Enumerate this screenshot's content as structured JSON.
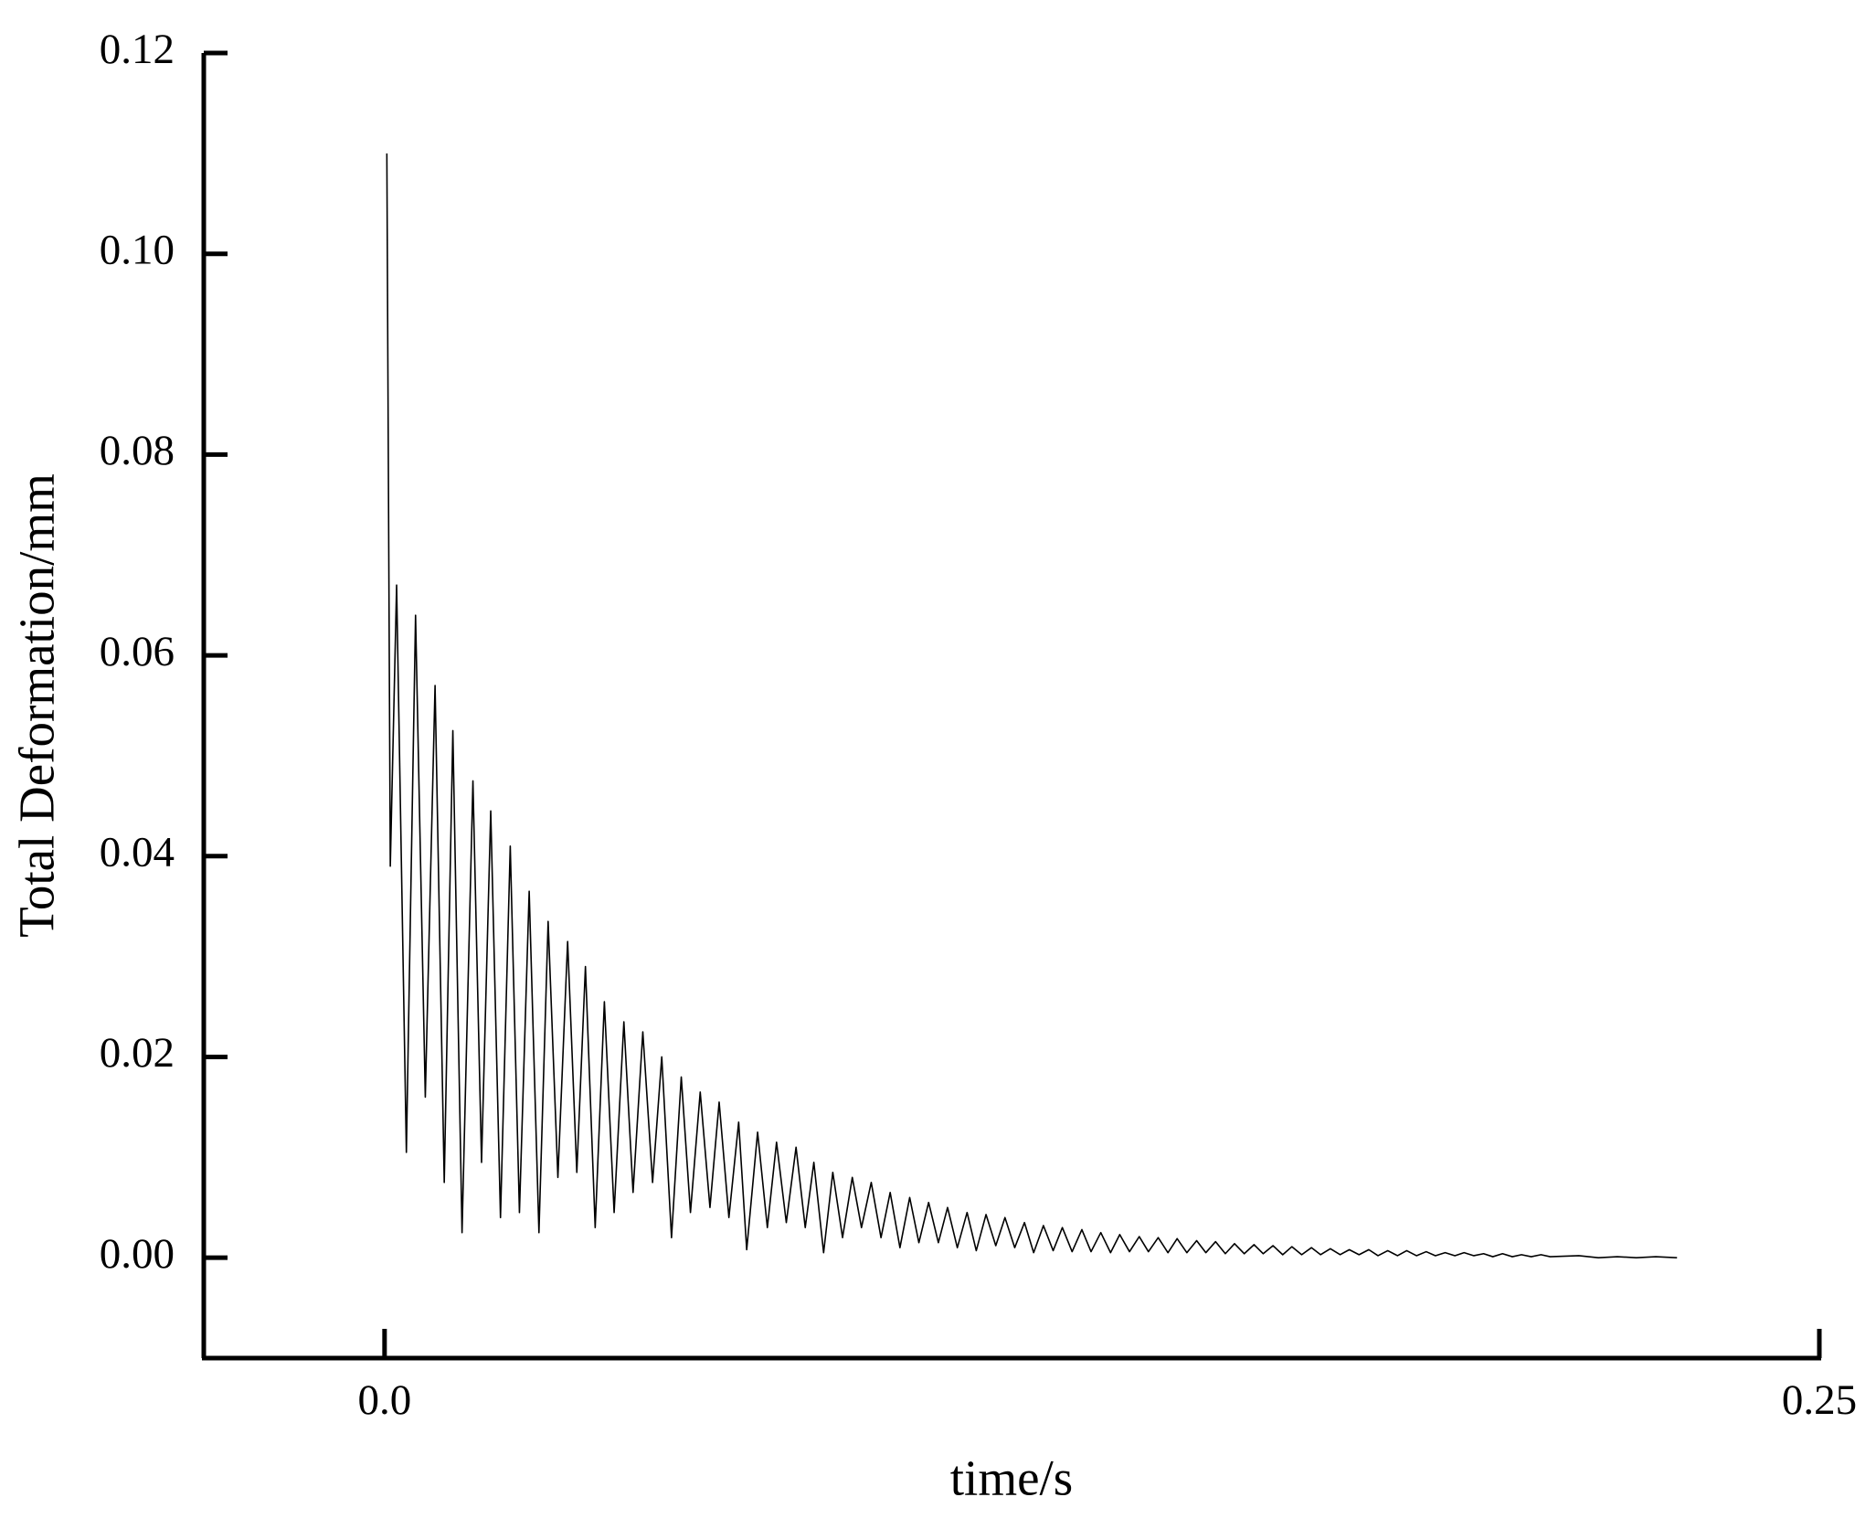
{
  "chart_data": {
    "type": "line",
    "x_label": "time/s",
    "y_label": "Total Deformation/mm",
    "xlim": [
      -0.0315,
      0.25
    ],
    "ylim": [
      -0.01,
      0.12
    ],
    "xticks": [
      {
        "value": 0,
        "label": "0.0"
      },
      0.25
    ],
    "yticks": [
      {
        "value": 0,
        "label": "0.00"
      },
      0.02,
      0.04,
      0.06,
      0.08,
      {
        "value": 0.1,
        "label": "0.10"
      },
      0.12
    ],
    "color": "#000000",
    "x": [
      0.0004,
      0.001,
      0.0021,
      0.0038,
      0.0054,
      0.0071,
      0.0088,
      0.0104,
      0.0119,
      0.0135,
      0.0154,
      0.0169,
      0.0185,
      0.0202,
      0.0219,
      0.0235,
      0.0252,
      0.0269,
      0.0285,
      0.0302,
      0.0319,
      0.0335,
      0.035,
      0.0367,
      0.0383,
      0.04,
      0.0417,
      0.0433,
      0.045,
      0.0467,
      0.0483,
      0.05,
      0.0517,
      0.0533,
      0.055,
      0.0567,
      0.0583,
      0.06,
      0.0617,
      0.0631,
      0.065,
      0.0667,
      0.0683,
      0.07,
      0.0717,
      0.0733,
      0.0748,
      0.0765,
      0.0781,
      0.0798,
      0.0815,
      0.0831,
      0.0848,
      0.0865,
      0.0881,
      0.0898,
      0.0915,
      0.0931,
      0.0948,
      0.0965,
      0.0981,
      0.0998,
      0.1015,
      0.1031,
      0.1048,
      0.1065,
      0.1081,
      0.1098,
      0.1115,
      0.1131,
      0.1148,
      0.1165,
      0.1181,
      0.1198,
      0.1215,
      0.1231,
      0.1248,
      0.1265,
      0.1281,
      0.1298,
      0.1315,
      0.1331,
      0.1348,
      0.1365,
      0.1381,
      0.1398,
      0.1415,
      0.1431,
      0.1448,
      0.1465,
      0.1481,
      0.1498,
      0.1515,
      0.1531,
      0.1548,
      0.1565,
      0.1581,
      0.1598,
      0.1615,
      0.1631,
      0.1648,
      0.1665,
      0.1681,
      0.1698,
      0.1715,
      0.1731,
      0.1748,
      0.1765,
      0.1781,
      0.1798,
      0.1815,
      0.1831,
      0.1848,
      0.1865,
      0.1881,
      0.1898,
      0.1915,
      0.1931,
      0.1948,
      0.1965,
      0.1981,
      0.1998,
      0.2015,
      0.2031,
      0.2081,
      0.2115,
      0.2148,
      0.2181,
      0.2215,
      0.2252
    ],
    "values": [
      0.11,
      0.039,
      0.067,
      0.0105,
      0.064,
      0.016,
      0.057,
      0.0075,
      0.0525,
      0.0025,
      0.0475,
      0.0095,
      0.0445,
      0.004,
      0.041,
      0.0045,
      0.0365,
      0.0025,
      0.0335,
      0.008,
      0.0315,
      0.0085,
      0.029,
      0.003,
      0.0255,
      0.0045,
      0.0235,
      0.0065,
      0.0225,
      0.0075,
      0.02,
      0.002,
      0.018,
      0.0045,
      0.0165,
      0.005,
      0.0155,
      0.004,
      0.0135,
      0.0008,
      0.0125,
      0.003,
      0.0115,
      0.0035,
      0.011,
      0.003,
      0.0095,
      0.0005,
      0.0085,
      0.002,
      0.008,
      0.003,
      0.0075,
      0.002,
      0.0065,
      0.001,
      0.006,
      0.0015,
      0.0055,
      0.0015,
      0.005,
      0.001,
      0.0045,
      0.0007,
      0.0043,
      0.0012,
      0.004,
      0.001,
      0.0035,
      0.0005,
      0.0032,
      0.0007,
      0.003,
      0.0006,
      0.0028,
      0.0006,
      0.0025,
      0.0005,
      0.0023,
      0.0006,
      0.0021,
      0.0006,
      0.002,
      0.0005,
      0.0019,
      0.0005,
      0.0017,
      0.0005,
      0.0016,
      0.0004,
      0.0014,
      0.0004,
      0.0013,
      0.0004,
      0.0012,
      0.0003,
      0.0011,
      0.0003,
      0.001,
      0.0003,
      0.0009,
      0.0003,
      0.0008,
      0.0003,
      0.0008,
      0.0002,
      0.0007,
      0.0002,
      0.0007,
      0.0002,
      0.0006,
      0.0002,
      0.0005,
      0.0002,
      0.0005,
      0.0002,
      0.0004,
      0.0001,
      0.0004,
      0.0001,
      0.0003,
      0.0001,
      0.0003,
      0.0001,
      0.0002,
      0.0,
      0.0001,
      0.0,
      0.0001,
      0.0
    ]
  }
}
